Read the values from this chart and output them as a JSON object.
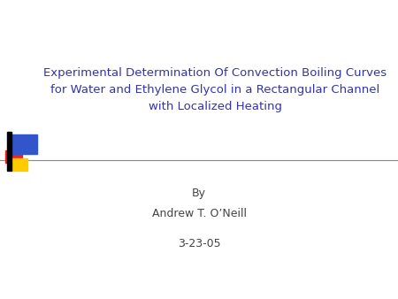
{
  "title_line1": "Experimental Determination Of Convection Boiling Curves",
  "title_line2": "for Water and Ethylene Glycol in a Rectangular Channel",
  "title_line3": "with Localized Heating",
  "by_text": "By",
  "author_text": "Andrew T. O’Neill",
  "date_text": "3-23-05",
  "title_color": "#3333aa",
  "body_color": "#444444",
  "background_color": "#ffffff",
  "title_fontsize": 9.5,
  "body_fontsize": 9.0,
  "logo_colors": {
    "blue": "#3355cc",
    "red": "#ee2222",
    "yellow": "#ffcc00"
  }
}
